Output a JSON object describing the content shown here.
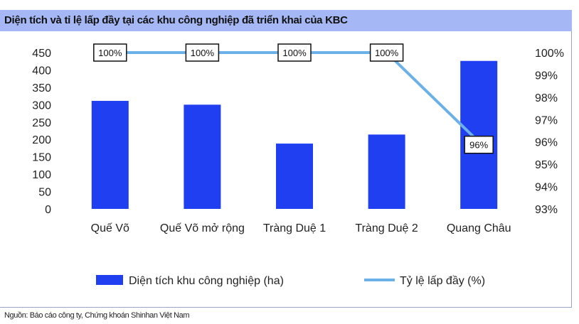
{
  "title": "Diện tích và tỉ lệ lấp đầy tại các khu công nghiệp đã triển khai của KBC",
  "source": "Nguồn: Báo cáo công ty, Chứng khoán Shinhan Việt Nam",
  "colors": {
    "bar": "#1f3ff0",
    "line": "#6cb0e8",
    "title_bg": "#a5b7f4"
  },
  "chart_data": {
    "type": "bar",
    "categories": [
      "Quế Võ",
      "Quế Võ mở rộng",
      "Tràng Duệ 1",
      "Tràng Duệ 2",
      "Quang Châu"
    ],
    "series": [
      {
        "name": "Diện tích khu công nghiệp (ha)",
        "type": "bar",
        "axis": "left",
        "values": [
          311,
          300,
          188,
          214,
          426
        ]
      },
      {
        "name": "Tỷ lệ lấp đầy (%)",
        "type": "line",
        "axis": "right",
        "values": [
          100,
          100,
          100,
          100,
          96
        ],
        "data_labels": [
          "100%",
          "100%",
          "100%",
          "100%",
          "96%"
        ]
      }
    ],
    "ylim": [
      0,
      450
    ],
    "yticks": [
      0,
      50,
      100,
      150,
      200,
      250,
      300,
      350,
      400,
      450
    ],
    "ytick_labels": [
      "0",
      "50",
      "100",
      "150",
      "200",
      "250",
      "300",
      "350",
      "400",
      "450"
    ],
    "y2lim": [
      93,
      100
    ],
    "y2ticks": [
      93,
      94,
      95,
      96,
      97,
      98,
      99,
      100
    ],
    "y2tick_labels": [
      "93%",
      "94%",
      "95%",
      "96%",
      "97%",
      "98%",
      "99%",
      "100%"
    ],
    "grid": false,
    "legend": "bottom"
  }
}
